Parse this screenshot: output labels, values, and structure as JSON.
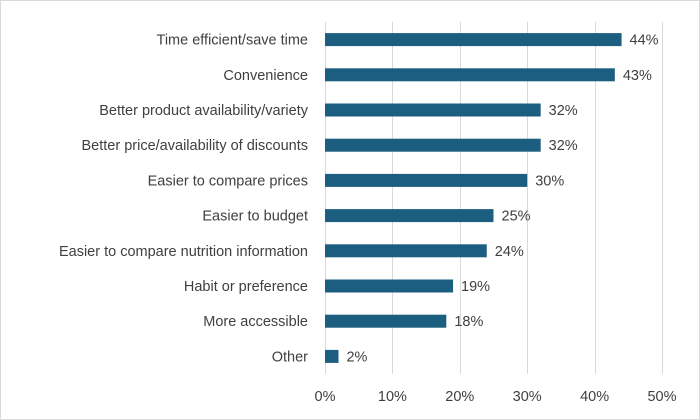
{
  "chart_data": {
    "type": "bar",
    "orientation": "horizontal",
    "categories": [
      "Time efficient/save time",
      "Convenience",
      "Better product availability/variety",
      "Better price/availability of discounts",
      "Easier to compare prices",
      "Easier to budget",
      "Easier to compare nutrition information",
      "Habit or preference",
      "More accessible",
      "Other"
    ],
    "values": [
      44,
      43,
      32,
      32,
      30,
      25,
      24,
      19,
      18,
      2
    ],
    "value_labels": [
      "44%",
      "43%",
      "32%",
      "32%",
      "30%",
      "25%",
      "24%",
      "19%",
      "18%",
      "2%"
    ],
    "xlim": [
      0,
      50
    ],
    "x_ticks": [
      0,
      10,
      20,
      30,
      40,
      50
    ],
    "x_tick_labels": [
      "0%",
      "10%",
      "20%",
      "30%",
      "40%",
      "50%"
    ],
    "bar_color": "#1b5e80",
    "grid": true,
    "legend": "none"
  }
}
